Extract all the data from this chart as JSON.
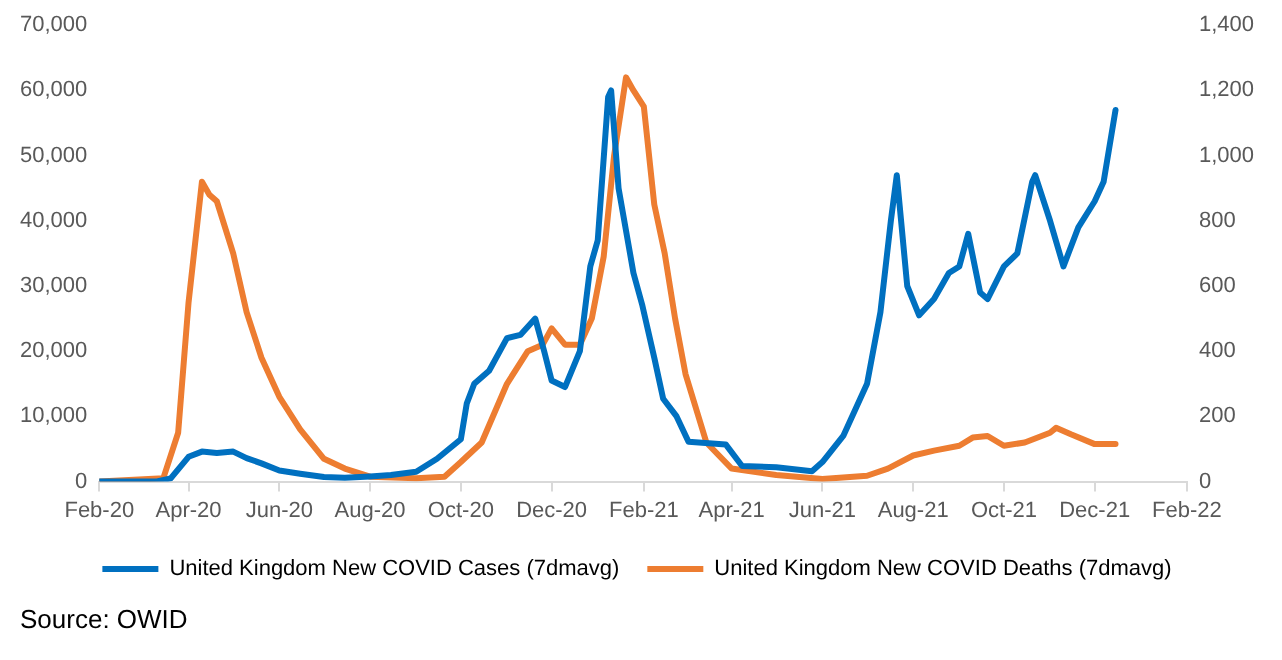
{
  "chart_data": {
    "type": "line",
    "xlim": [
      "2020-02-01",
      "2022-02-01"
    ],
    "xticks": [
      {
        "value": "2020-02-01",
        "label": "Feb-20"
      },
      {
        "value": "2020-04-01",
        "label": "Apr-20"
      },
      {
        "value": "2020-06-01",
        "label": "Jun-20"
      },
      {
        "value": "2020-08-01",
        "label": "Aug-20"
      },
      {
        "value": "2020-10-01",
        "label": "Oct-20"
      },
      {
        "value": "2020-12-01",
        "label": "Dec-20"
      },
      {
        "value": "2021-02-01",
        "label": "Feb-21"
      },
      {
        "value": "2021-04-01",
        "label": "Apr-21"
      },
      {
        "value": "2021-06-01",
        "label": "Jun-21"
      },
      {
        "value": "2021-08-01",
        "label": "Aug-21"
      },
      {
        "value": "2021-10-01",
        "label": "Oct-21"
      },
      {
        "value": "2021-12-01",
        "label": "Dec-21"
      },
      {
        "value": "2022-02-01",
        "label": "Feb-22"
      }
    ],
    "ylim": [
      0,
      70000
    ],
    "yticks": [
      0,
      {
        "value": 10000,
        "label": "10,000"
      },
      {
        "value": 20000,
        "label": "20,000"
      },
      {
        "value": 30000,
        "label": "30,000"
      },
      {
        "value": 40000,
        "label": "40,000"
      },
      {
        "value": 50000,
        "label": "50,000"
      },
      {
        "value": 60000,
        "label": "60,000"
      },
      {
        "value": 70000,
        "label": "70,000"
      }
    ],
    "y2lim": [
      0,
      1400
    ],
    "y2ticks": [
      0,
      200,
      400,
      600,
      800,
      {
        "value": 1000,
        "label": "1,000"
      },
      {
        "value": 1200,
        "label": "1,200"
      },
      {
        "value": 1400,
        "label": "1,400"
      }
    ],
    "grid": false,
    "legend": "bottom",
    "marker": "none",
    "line_style": "solid",
    "series": [
      {
        "name": "United Kingdom New COVID Cases (7dmavg)",
        "color": "#0070c0",
        "x": [
          "2020-02-01",
          "2020-03-10",
          "2020-03-20",
          "2020-04-01",
          "2020-04-10",
          "2020-04-20",
          "2020-05-01",
          "2020-05-10",
          "2020-05-20",
          "2020-06-01",
          "2020-06-15",
          "2020-07-01",
          "2020-07-15",
          "2020-08-01",
          "2020-08-15",
          "2020-09-01",
          "2020-09-15",
          "2020-10-01",
          "2020-10-05",
          "2020-10-10",
          "2020-10-20",
          "2020-11-01",
          "2020-11-10",
          "2020-11-20",
          "2020-11-26",
          "2020-12-01",
          "2020-12-10",
          "2020-12-20",
          "2020-12-27",
          "2021-01-01",
          "2021-01-08",
          "2021-01-10",
          "2021-01-15",
          "2021-01-25",
          "2021-01-31",
          "2021-02-08",
          "2021-02-14",
          "2021-02-23",
          "2021-03-03",
          "2021-03-28",
          "2021-04-08",
          "2021-05-01",
          "2021-05-25",
          "2021-06-01",
          "2021-06-15",
          "2021-07-01",
          "2021-07-10",
          "2021-07-17",
          "2021-07-21",
          "2021-07-28",
          "2021-08-05",
          "2021-08-15",
          "2021-08-25",
          "2021-09-01",
          "2021-09-07",
          "2021-09-15",
          "2021-09-20",
          "2021-10-01",
          "2021-10-10",
          "2021-10-20",
          "2021-10-22",
          "2021-11-01",
          "2021-11-10",
          "2021-11-20",
          "2021-12-01",
          "2021-12-07",
          "2021-12-15"
        ],
        "values": [
          0,
          0,
          500,
          3800,
          4600,
          4400,
          4600,
          3600,
          2800,
          1700,
          1200,
          700,
          600,
          800,
          1000,
          1500,
          3500,
          6500,
          12000,
          15000,
          17000,
          22000,
          22500,
          25000,
          20000,
          15500,
          14500,
          20000,
          33000,
          37000,
          59000,
          60000,
          45000,
          32000,
          27000,
          19000,
          12700,
          10000,
          6100,
          5700,
          2400,
          2200,
          1600,
          3000,
          7000,
          15000,
          26000,
          40000,
          47000,
          30000,
          25500,
          28000,
          32000,
          33000,
          38000,
          29000,
          28000,
          33000,
          35000,
          46000,
          47000,
          40000,
          33000,
          39000,
          43000,
          46000,
          57000
        ]
      },
      {
        "name": "United Kingdom New COVID Deaths (7dmavg)",
        "color": "#ed7d31",
        "axis": "y2",
        "x": [
          "2020-02-01",
          "2020-03-15",
          "2020-03-25",
          "2020-04-01",
          "2020-04-10",
          "2020-04-15",
          "2020-04-20",
          "2020-05-01",
          "2020-05-10",
          "2020-05-20",
          "2020-06-01",
          "2020-06-15",
          "2020-07-01",
          "2020-07-15",
          "2020-08-01",
          "2020-09-01",
          "2020-09-20",
          "2020-10-01",
          "2020-10-15",
          "2020-11-01",
          "2020-11-15",
          "2020-11-25",
          "2020-12-01",
          "2020-12-10",
          "2020-12-20",
          "2020-12-28",
          "2021-01-05",
          "2021-01-12",
          "2021-01-20",
          "2021-01-25",
          "2021-02-01",
          "2021-02-08",
          "2021-02-15",
          "2021-02-22",
          "2021-03-01",
          "2021-03-15",
          "2021-04-01",
          "2021-05-01",
          "2021-06-01",
          "2021-07-01",
          "2021-07-15",
          "2021-08-01",
          "2021-08-15",
          "2021-09-01",
          "2021-09-10",
          "2021-09-20",
          "2021-10-01",
          "2021-10-15",
          "2021-11-01",
          "2021-11-05",
          "2021-11-15",
          "2021-12-01",
          "2021-12-15"
        ],
        "values": [
          0,
          10,
          150,
          550,
          920,
          880,
          860,
          700,
          520,
          380,
          260,
          160,
          70,
          40,
          15,
          10,
          15,
          60,
          120,
          300,
          400,
          420,
          470,
          420,
          420,
          500,
          690,
          1000,
          1240,
          1200,
          1150,
          850,
          700,
          500,
          330,
          120,
          40,
          20,
          8,
          18,
          40,
          80,
          95,
          110,
          135,
          140,
          110,
          120,
          150,
          165,
          145,
          115,
          115
        ]
      }
    ],
    "annotations": [
      "Source: OWID"
    ]
  }
}
